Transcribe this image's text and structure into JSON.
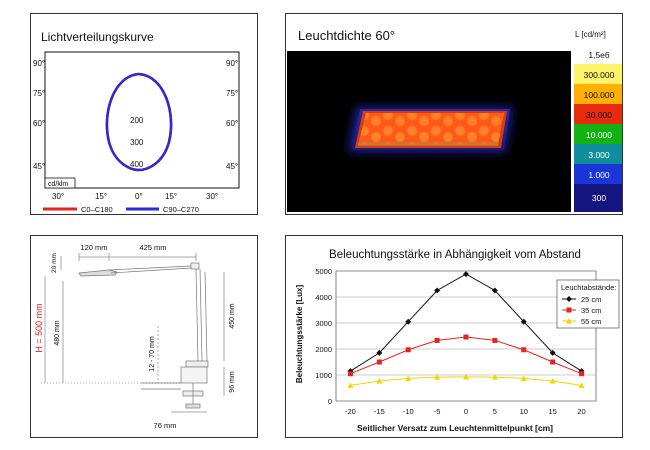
{
  "colors": {
    "red": "#e52421",
    "blue": "#2b2bd1",
    "black": "#111111",
    "yellow": "#f2d600"
  },
  "chart_data": [
    {
      "type": "polar",
      "title": "Lichtverteilungskurve",
      "unit_label": "cd/klm",
      "radial_ticks": [
        "200",
        "300",
        "400"
      ],
      "angle_labels_left": [
        "90°",
        "75°",
        "60°",
        "45°"
      ],
      "angle_labels_right": [
        "90°",
        "75°",
        "60°",
        "45°"
      ],
      "angle_labels_bottom": [
        "30°",
        "15°",
        "0°",
        "15°",
        "30°"
      ],
      "legend": [
        {
          "label": "C0–C180",
          "color": "#e52421"
        },
        {
          "label": "C90–C270",
          "color": "#2b2bd1"
        }
      ]
    },
    {
      "type": "heatmap",
      "title": "Leuchtdichte 60°",
      "unit_label": "L [cd/m²]",
      "scale": [
        "1,5e6",
        "300.000",
        "100.000",
        "30.000",
        "10.000",
        "3.000",
        "1.000",
        "300"
      ]
    },
    {
      "type": "diagram",
      "dimensions": {
        "top_small": "20 mm",
        "left_offset": "120 mm",
        "arm_length": "425 mm",
        "height_label": "H = 500 mm",
        "vertical": "480 mm",
        "clamp": "12 - 70 mm",
        "column": "450 mm",
        "base_height": "96 mm",
        "base_width": "76 mm"
      }
    },
    {
      "type": "line",
      "title": "Beleuchtungsstärke in Abhängigkeit vom Abstand",
      "xlabel": "Seitlicher Versatz zum Leuchtenmittelpunkt [cm]",
      "ylabel": "Beleuchtungsstärke [Lux]",
      "x": [
        -20,
        -15,
        -10,
        -5,
        0,
        5,
        10,
        15,
        20
      ],
      "ylim": [
        0,
        5000
      ],
      "yticks": [
        0,
        1000,
        2000,
        3000,
        4000,
        5000
      ],
      "legend_title": "Leuchtabstände:",
      "series": [
        {
          "name": "25 cm",
          "color": "#111111",
          "values": [
            1150,
            1850,
            3050,
            4250,
            4880,
            4250,
            3050,
            1850,
            1150
          ]
        },
        {
          "name": "35 cm",
          "color": "#e52421",
          "values": [
            1050,
            1500,
            1970,
            2330,
            2460,
            2330,
            1970,
            1500,
            1050
          ]
        },
        {
          "name": "55 cm",
          "color": "#f2d600",
          "values": [
            600,
            770,
            870,
            920,
            930,
            920,
            870,
            770,
            600
          ]
        }
      ]
    }
  ]
}
